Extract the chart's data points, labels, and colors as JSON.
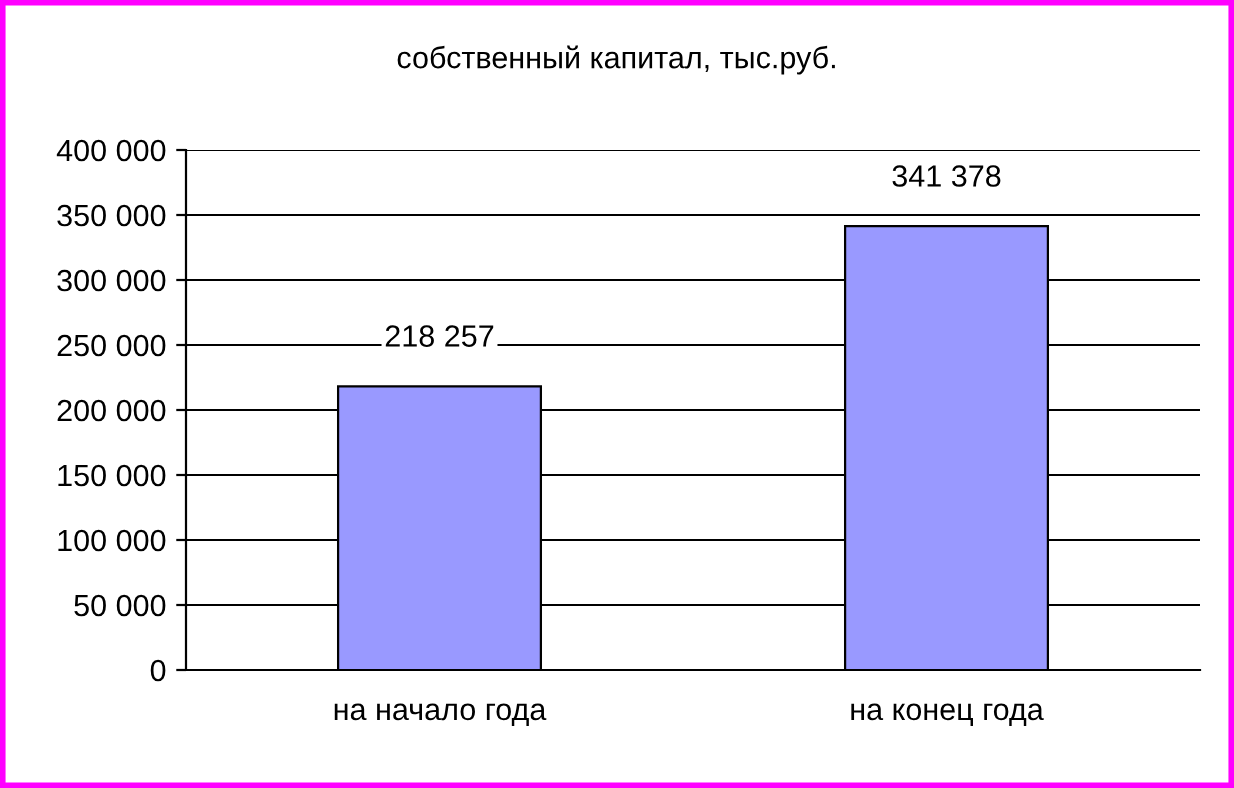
{
  "chart_data": {
    "type": "bar",
    "title": "собственный капитал, тыс.руб.",
    "categories": [
      "на начало года",
      "на конец года"
    ],
    "values": [
      218257,
      341378
    ],
    "value_labels": [
      "218 257",
      "341 378"
    ],
    "color": "#9999ff",
    "ylim": [
      0,
      400000
    ],
    "yticks": [
      {
        "value": 0,
        "label": "0"
      },
      {
        "value": 50000,
        "label": "50 000"
      },
      {
        "value": 100000,
        "label": "100 000"
      },
      {
        "value": 150000,
        "label": "150 000"
      },
      {
        "value": 200000,
        "label": "200 000"
      },
      {
        "value": 250000,
        "label": "250 000"
      },
      {
        "value": 300000,
        "label": "300 000"
      },
      {
        "value": 350000,
        "label": "350 000"
      },
      {
        "value": 400000,
        "label": "400 000"
      }
    ],
    "grid": "y",
    "legend": false
  }
}
